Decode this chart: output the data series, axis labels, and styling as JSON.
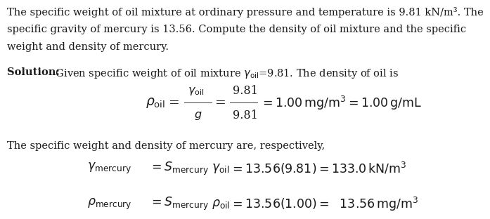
{
  "bg_color": "#ffffff",
  "text_color": "#1a1a1a",
  "line1": "The specific weight of oil mixture at ordinary pressure and temperature is 9.81 kN/m³. The",
  "line2": "specific gravity of mercury is 13.56. Compute the density of oil mixture and the specific",
  "line3": "weight and density of mercury.",
  "solution_bold": "Solution:",
  "solution_rest": " Given specific weight of oil mixture $\\gamma_{oil}$=9.81. The density of oil is",
  "mercury_text": "The specific weight and density of mercury are, respectively,",
  "fs_body": 10.5,
  "fs_eq": 12.5
}
